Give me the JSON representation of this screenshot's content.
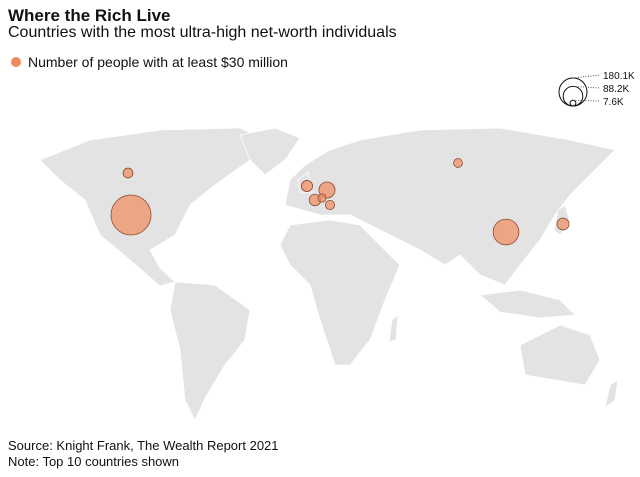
{
  "chart_data": {
    "type": "bubble-map",
    "title": "Where the Rich Live",
    "subtitle": "Countries with the most ultra-high net-worth individuals",
    "series": [
      {
        "name": "Number of people with at least $30 million",
        "color": "#f08a5d",
        "values": [
          180100,
          75000,
          29000,
          16000,
          15000,
          14000,
          11000,
          9500,
          8800,
          7600
        ]
      }
    ],
    "size_ticks": [
      {
        "value": 180100,
        "label": "180.1K"
      },
      {
        "value": 88200,
        "label": "88.2K"
      },
      {
        "value": 7600,
        "label": "7.6K"
      }
    ],
    "source": "Source: Knight Frank, The Wealth Report 2021",
    "note": "Note: Top 10 countries shown"
  }
}
